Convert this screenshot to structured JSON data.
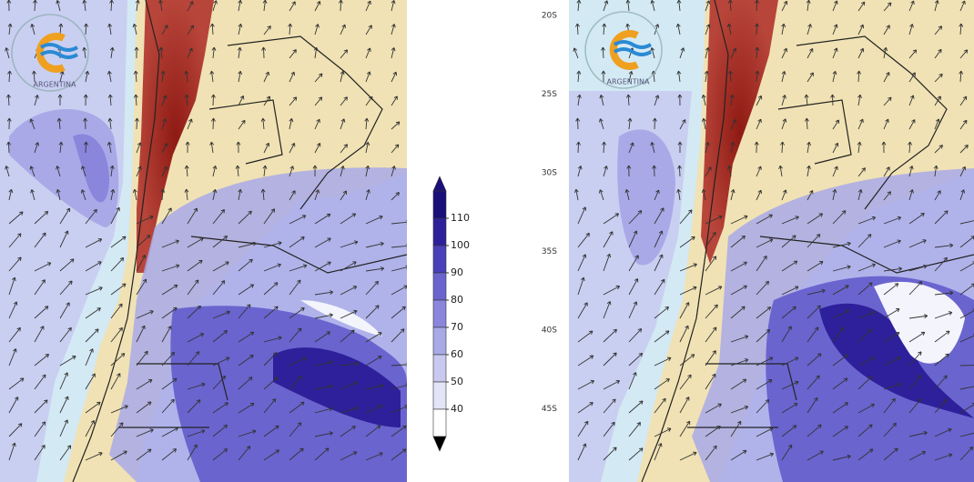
{
  "logo": {
    "text": "ARGENTINA"
  },
  "colorbar": {
    "ticks": [
      110,
      100,
      90,
      80,
      70,
      60,
      50,
      40
    ],
    "colors": [
      "#1a0e7a",
      "#2e209a",
      "#4a40b8",
      "#6a64cf",
      "#8a86dc",
      "#a9a9e8",
      "#c9c9f0",
      "#e4e4f8",
      "#ffffff"
    ]
  },
  "latitude_labels": [
    "20S",
    "25S",
    "30S",
    "35S",
    "40S",
    "45S"
  ]
}
